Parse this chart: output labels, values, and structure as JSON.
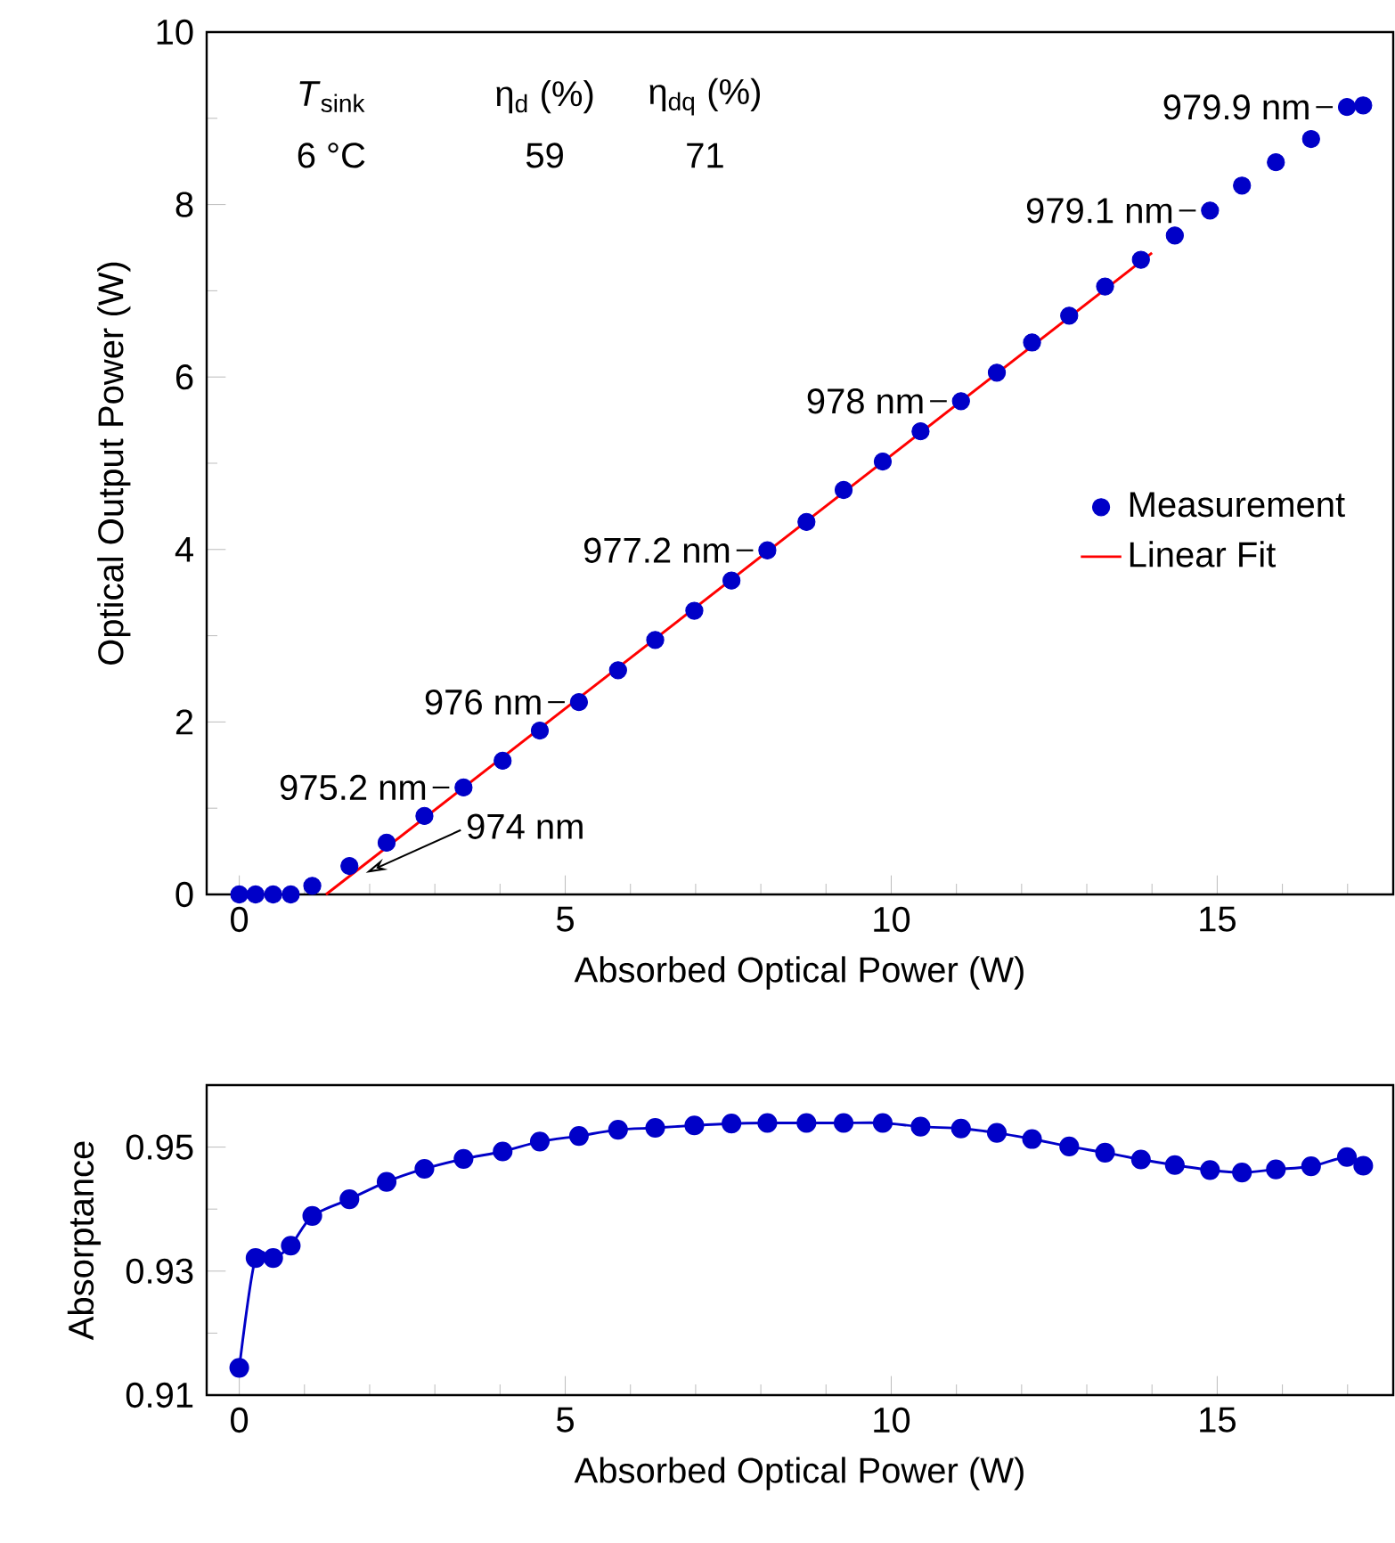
{
  "chart_data": [
    {
      "type": "scatter",
      "xlabel": "Absorbed Optical Power (W)",
      "ylabel": "Optical Output Power (W)",
      "xlim": [
        -0.5,
        17.7
      ],
      "ylim": [
        0,
        10
      ],
      "xticks": [
        0,
        {
          "value": 1,
          "label": null
        },
        {
          "value": 2,
          "label": null
        },
        {
          "value": 3,
          "label": null
        },
        {
          "value": 4,
          "label": null
        },
        5,
        {
          "value": 6,
          "label": null
        },
        {
          "value": 7,
          "label": null
        },
        {
          "value": 8,
          "label": null
        },
        {
          "value": 9,
          "label": null
        },
        10,
        {
          "value": 11,
          "label": null
        },
        {
          "value": 12,
          "label": null
        },
        {
          "value": 13,
          "label": null
        },
        {
          "value": 14,
          "label": null
        },
        15,
        {
          "value": 16,
          "label": null
        },
        {
          "value": 17,
          "label": null
        }
      ],
      "yticks": [
        0,
        {
          "value": 1,
          "label": null
        },
        2,
        {
          "value": 3,
          "label": null
        },
        4,
        {
          "value": 5,
          "label": null
        },
        6,
        {
          "value": 7,
          "label": null
        },
        8,
        {
          "value": 9,
          "label": null
        },
        10
      ],
      "legend": "right",
      "grid": false,
      "series": [
        {
          "name": "Measurement",
          "marker": "circle",
          "color": "#0000c8",
          "x": [
            0,
            0.25,
            0.52,
            0.79,
            1.12,
            1.69,
            2.26,
            2.84,
            3.44,
            4.04,
            4.61,
            5.21,
            5.81,
            6.38,
            6.98,
            7.55,
            8.1,
            8.7,
            9.27,
            9.87,
            10.45,
            11.07,
            11.62,
            12.16,
            12.73,
            13.28,
            13.83,
            14.35,
            14.89,
            15.38,
            15.9,
            16.44,
            16.99,
            17.24
          ],
          "values": [
            0,
            0,
            0,
            0,
            0.1,
            0.33,
            0.6,
            0.91,
            1.24,
            1.55,
            1.9,
            2.23,
            2.6,
            2.95,
            3.29,
            3.64,
            3.99,
            4.32,
            4.69,
            5.02,
            5.37,
            5.72,
            6.05,
            6.4,
            6.71,
            7.05,
            7.36,
            7.64,
            7.93,
            8.22,
            8.49,
            8.76,
            9.13,
            9.15
          ]
        },
        {
          "name": "Linear Fit",
          "type": "line",
          "color": "#ff0000",
          "x": [
            1.33,
            14.0
          ],
          "values": [
            0,
            7.44
          ]
        }
      ],
      "annotations": [
        {
          "text": "974 nm",
          "x": 1.94,
          "y": 0.25
        },
        {
          "text": "975.2 nm",
          "x": 3.44,
          "y": 1.24
        },
        {
          "text": "976 nm",
          "x": 5.21,
          "y": 2.23
        },
        {
          "text": "977.2 nm",
          "x": 8.1,
          "y": 3.99
        },
        {
          "text": "978 nm",
          "x": 11.07,
          "y": 5.72
        },
        {
          "text": "979.1 nm",
          "x": 14.89,
          "y": 7.93
        },
        {
          "text": "979.9 nm",
          "x": 16.99,
          "y": 9.13
        },
        "*T*$_{sink}$",
        "6 °C",
        "η$_{d}$ (%)",
        "59",
        "η$_{dq}$ (%)",
        "71"
      ]
    },
    {
      "type": "line",
      "xlabel": "Absorbed Optical Power (W)",
      "ylabel": "Absorptance",
      "xlim": [
        -0.5,
        17.7
      ],
      "ylim": [
        0.91,
        0.96
      ],
      "xticks": [
        0,
        {
          "value": 1,
          "label": null
        },
        {
          "value": 2,
          "label": null
        },
        {
          "value": 3,
          "label": null
        },
        {
          "value": 4,
          "label": null
        },
        5,
        {
          "value": 6,
          "label": null
        },
        {
          "value": 7,
          "label": null
        },
        {
          "value": 8,
          "label": null
        },
        {
          "value": 9,
          "label": null
        },
        10,
        {
          "value": 11,
          "label": null
        },
        {
          "value": 12,
          "label": null
        },
        {
          "value": 13,
          "label": null
        },
        {
          "value": 14,
          "label": null
        },
        15,
        {
          "value": 16,
          "label": null
        },
        {
          "value": 17,
          "label": null
        }
      ],
      "yticks": [
        0.91,
        {
          "value": 0.92,
          "label": null
        },
        0.93,
        {
          "value": 0.94,
          "label": null
        },
        0.95
      ],
      "grid": false,
      "series": [
        {
          "marker": "circle",
          "color": "#0000c8",
          "x": [
            0,
            0.25,
            0.52,
            0.79,
            1.12,
            1.69,
            2.26,
            2.84,
            3.44,
            4.04,
            4.61,
            5.21,
            5.81,
            6.38,
            6.98,
            7.55,
            8.1,
            8.7,
            9.27,
            9.87,
            10.45,
            11.07,
            11.62,
            12.16,
            12.73,
            13.28,
            13.83,
            14.35,
            14.89,
            15.38,
            15.9,
            16.44,
            16.99,
            17.24
          ],
          "values": [
            0.9144,
            0.9321,
            0.9321,
            0.9341,
            0.9389,
            0.9416,
            0.9444,
            0.9465,
            0.9481,
            0.9493,
            0.9509,
            0.9518,
            0.9528,
            0.9531,
            0.9535,
            0.9538,
            0.9539,
            0.9539,
            0.9539,
            0.9539,
            0.9533,
            0.953,
            0.9523,
            0.9513,
            0.9501,
            0.9491,
            0.948,
            0.9471,
            0.9463,
            0.9459,
            0.9464,
            0.9469,
            0.9484,
            0.947
          ]
        }
      ]
    }
  ]
}
